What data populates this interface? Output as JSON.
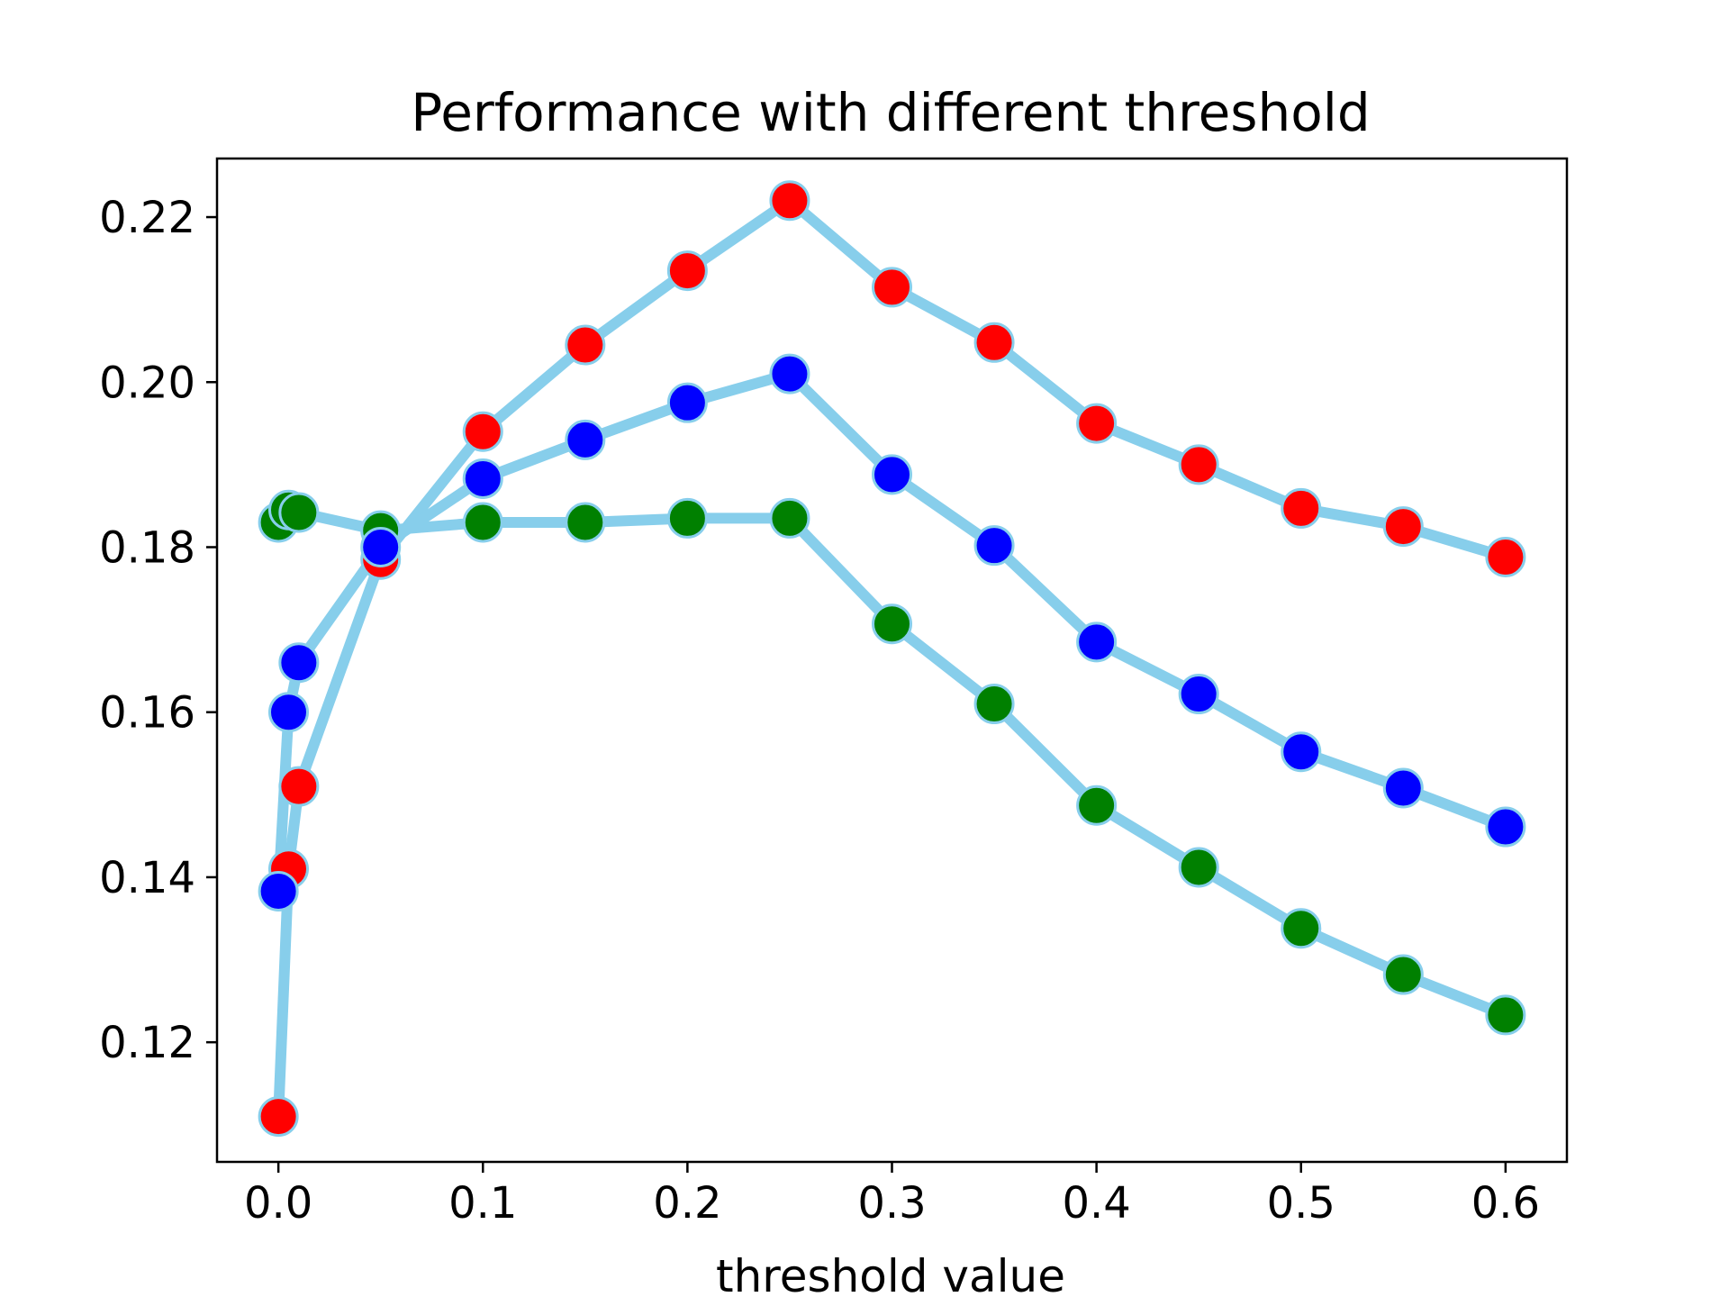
{
  "chart_data": {
    "type": "line",
    "title": "Performance with different threshold",
    "xlabel": "threshold value",
    "ylabel": "",
    "xlim": [
      -0.03,
      0.63
    ],
    "ylim": [
      0.1055,
      0.2271
    ],
    "xticks": [
      0.0,
      0.1,
      0.2,
      0.3,
      0.4,
      0.5,
      0.6
    ],
    "xtick_labels": [
      "0.0",
      "0.1",
      "0.2",
      "0.3",
      "0.4",
      "0.5",
      "0.6"
    ],
    "yticks": [
      0.12,
      0.14,
      0.16,
      0.18,
      0.2,
      0.22
    ],
    "ytick_labels": [
      "0.12",
      "0.14",
      "0.16",
      "0.18",
      "0.20",
      "0.22"
    ],
    "grid": false,
    "line_color": "#87ceeb",
    "marker_edge_color": "#87ceeb",
    "x": [
      0.0,
      0.005,
      0.01,
      0.05,
      0.1,
      0.15,
      0.2,
      0.25,
      0.3,
      0.35,
      0.4,
      0.45,
      0.5,
      0.55,
      0.6
    ],
    "series": [
      {
        "color": "#ff0000",
        "values": [
          0.111,
          0.141,
          0.151,
          0.1785,
          0.194,
          0.2045,
          0.2135,
          0.222,
          0.2115,
          0.2048,
          0.195,
          0.19,
          0.1847,
          0.1825,
          0.1788
        ]
      },
      {
        "color": "#008000",
        "values": [
          0.183,
          0.1845,
          0.1842,
          0.182,
          0.183,
          0.183,
          0.1835,
          0.1835,
          0.1707,
          0.161,
          0.1487,
          0.1412,
          0.1338,
          0.1282,
          0.1233
        ]
      },
      {
        "color": "#0000ff",
        "values": [
          0.1383,
          0.16,
          0.166,
          0.18,
          0.1883,
          0.193,
          0.1975,
          0.201,
          0.1888,
          0.1802,
          0.1685,
          0.1622,
          0.1552,
          0.1508,
          0.1461
        ]
      }
    ]
  }
}
